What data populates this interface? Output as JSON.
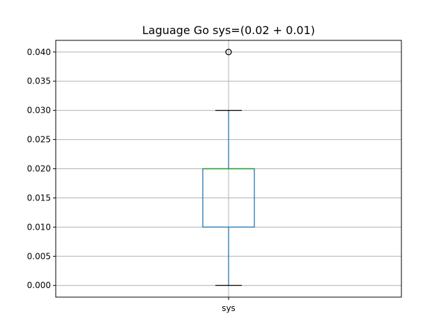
{
  "chart_data": {
    "type": "box",
    "title": "Laguage Go sys=(0.02 + 0.01)",
    "xlabel": "",
    "ylabel": "",
    "categories": [
      "sys"
    ],
    "boxes": [
      {
        "category": "sys",
        "whisker_low": 0.0,
        "q1": 0.01,
        "median": 0.02,
        "q3": 0.02,
        "whisker_high": 0.03,
        "outliers": [
          0.04
        ]
      }
    ],
    "ylim": [
      -0.002,
      0.042
    ],
    "yticks": [
      0.0,
      0.005,
      0.01,
      0.015,
      0.02,
      0.025,
      0.03,
      0.035,
      0.04
    ],
    "ytick_labels": [
      "0.000",
      "0.005",
      "0.010",
      "0.015",
      "0.020",
      "0.025",
      "0.030",
      "0.035",
      "0.040"
    ],
    "grid": true,
    "colors": {
      "box": "#1f77b4",
      "median": "#2ca02c",
      "whisker": "#1f77b4",
      "cap": "#000000",
      "flier": "#000000",
      "grid": "#b0b0b0",
      "axes": "#000000"
    }
  }
}
